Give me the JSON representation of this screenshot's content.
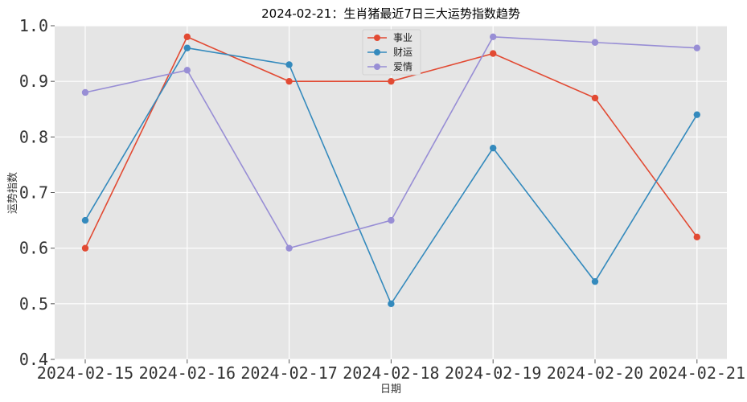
{
  "chart_data": {
    "type": "line",
    "title": "2024-02-21：生肖猪最近7日三大运势指数趋势",
    "xlabel": "日期",
    "ylabel": "运势指数",
    "categories": [
      "2024-02-15",
      "2024-02-16",
      "2024-02-17",
      "2024-02-18",
      "2024-02-19",
      "2024-02-20",
      "2024-02-21"
    ],
    "ylim": [
      0.4,
      1.0
    ],
    "yticks": [
      "0.4",
      "0.5",
      "0.6",
      "0.7",
      "0.8",
      "0.9",
      "1.0"
    ],
    "grid": true,
    "legend_position": "top-center",
    "series": [
      {
        "name": "事业",
        "color": "#E24A33",
        "values": [
          0.6,
          0.98,
          0.9,
          0.9,
          0.95,
          0.87,
          0.62
        ]
      },
      {
        "name": "财运",
        "color": "#348ABD",
        "values": [
          0.65,
          0.96,
          0.93,
          0.5,
          0.78,
          0.54,
          0.84
        ]
      },
      {
        "name": "爱情",
        "color": "#988ED5",
        "values": [
          0.88,
          0.92,
          0.6,
          0.65,
          0.98,
          0.97,
          0.96
        ]
      }
    ]
  }
}
